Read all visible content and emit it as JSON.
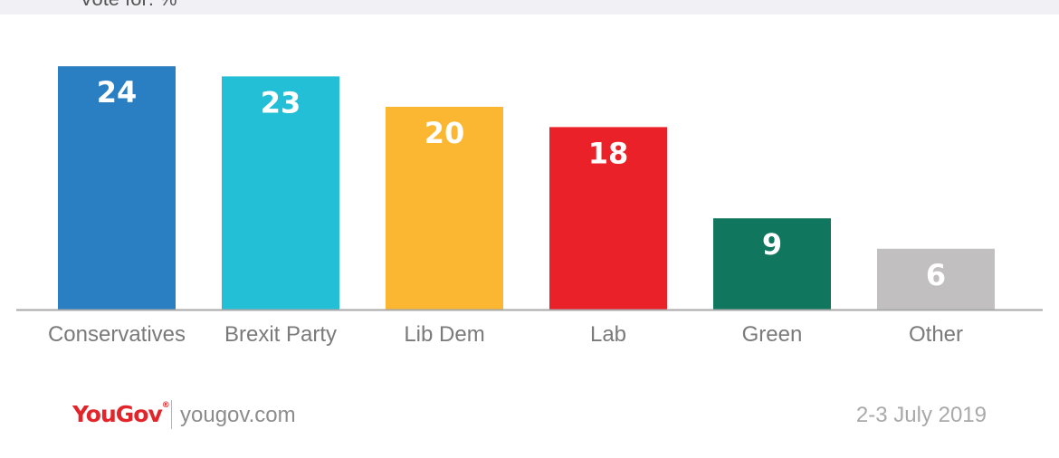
{
  "chart_data": {
    "type": "bar",
    "subtitle": "Vote for: %",
    "categories": [
      "Conservatives",
      "Brexit Party",
      "Lib Dem",
      "Lab",
      "Green",
      "Other"
    ],
    "values": [
      24,
      23,
      20,
      18,
      9,
      6
    ],
    "colors": [
      "#2a7fc2",
      "#22bfd6",
      "#fbb731",
      "#eb2129",
      "#10765e",
      "#c1bfc0"
    ],
    "ylim": [
      0,
      24
    ],
    "grid": false,
    "legend": "none"
  },
  "footer": {
    "brand": "YouGov",
    "website": "yougov.com",
    "date": "2-3 July 2019"
  }
}
